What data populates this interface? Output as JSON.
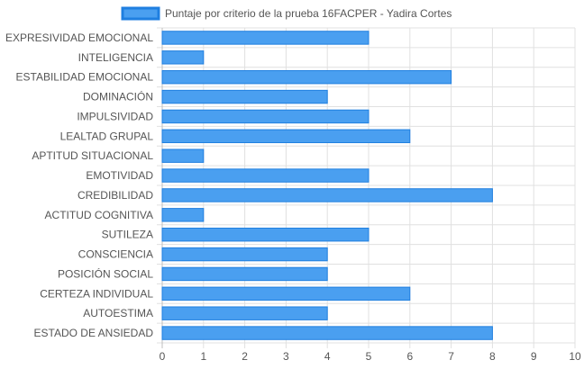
{
  "chart_data": {
    "type": "bar",
    "orientation": "horizontal",
    "categories": [
      "EXPRESIVIDAD EMOCIONAL",
      "INTELIGENCIA",
      "ESTABILIDAD EMOCIONAL",
      "DOMINACIÓN",
      "IMPULSIVIDAD",
      "LEALTAD GRUPAL",
      "APTITUD SITUACIONAL",
      "EMOTIVIDAD",
      "CREDIBILIDAD",
      "ACTITUD COGNITIVA",
      "SUTILEZA",
      "CONSCIENCIA",
      "POSICIÓN SOCIAL",
      "CERTEZA INDIVIDUAL",
      "AUTOESTIMA",
      "ESTADO DE ANSIEDAD"
    ],
    "series": [
      {
        "name": "Puntaje por criterio de la prueba 16FACPER - Yadira Cortes",
        "values": [
          5,
          1,
          7,
          4,
          5,
          6,
          1,
          5,
          8,
          1,
          5,
          4,
          4,
          6,
          4,
          8
        ],
        "color": "#4a9ff0",
        "border_color": "#1f7fe0"
      }
    ],
    "xlim": [
      0,
      10
    ],
    "x_ticks": [
      "0",
      "1",
      "2",
      "3",
      "4",
      "5",
      "6",
      "7",
      "8",
      "9",
      "10"
    ],
    "grid": true,
    "legend_position": "top-center",
    "colors": {
      "grid": "#e0e0e0",
      "axis": "#bfbfbf",
      "text": "#555555"
    }
  }
}
